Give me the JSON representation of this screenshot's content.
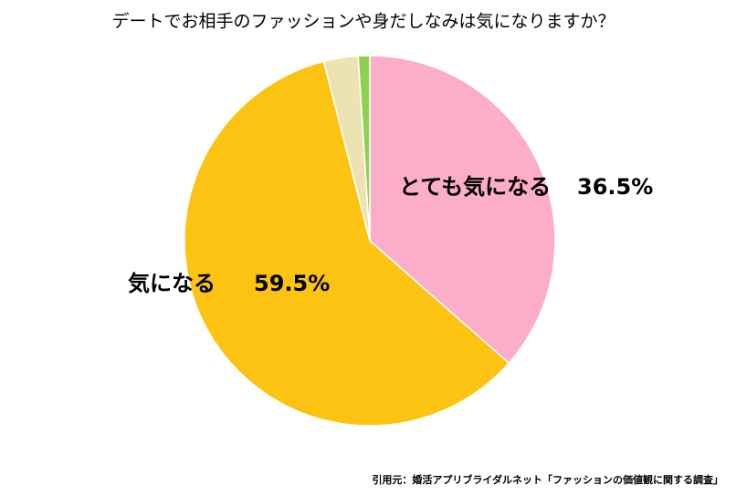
{
  "chart_data": {
    "type": "pie",
    "title": "デートでお相手のファッションや身だしなみは気になりますか？",
    "categories": [
      "とても気になる",
      "気になる",
      null,
      null
    ],
    "values": [
      36.5,
      59.5,
      3,
      1
    ],
    "value_labels": [
      "36.5%",
      "59.5%",
      null,
      null
    ],
    "colors": [
      "#fbadc9",
      "#fdc312",
      "#ede3b2",
      "#8fd14f"
    ],
    "source": "引用元：婚活アプリブライダルネット「ファッションの価値観に関する調査」"
  }
}
